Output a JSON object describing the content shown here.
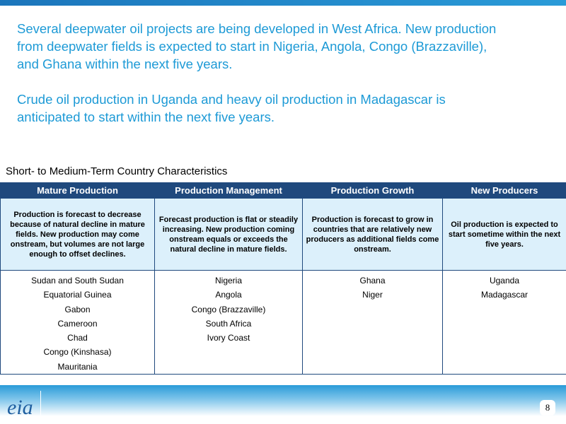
{
  "paragraphs": [
    "Several deepwater oil projects are being developed in West Africa. New production from deepwater fields is expected to start in Nigeria, Angola, Congo (Brazzaville), and Ghana within the next five years.",
    "Crude oil production in Uganda and heavy oil production in Madagascar is anticipated to start within the next five years."
  ],
  "table": {
    "caption": "Short- to Medium-Term Country Characteristics",
    "columns": [
      "Mature Production",
      "Production Management",
      "Production Growth",
      "New Producers"
    ],
    "descriptions": [
      "Production is forecast to decrease because of natural decline in mature fields. New production may come onstream, but volumes are not large enough to offset declines.",
      "Forecast production is flat or steadily increasing. New production coming onstream  equals or exceeds the natural decline in mature fields.",
      "Production is forecast to grow in countries that are relatively new producers as additional fields come onstream.",
      "Oil production is expected to start sometime within the next five years."
    ],
    "countries": [
      [
        "Sudan and South Sudan",
        "Equatorial Guinea",
        "Gabon",
        "Cameroon",
        "Chad",
        "Congo (Kinshasa)",
        "Mauritania"
      ],
      [
        "Nigeria",
        "Angola",
        "Congo (Brazzaville)",
        "South Africa",
        "Ivory Coast"
      ],
      [
        "Ghana",
        "Niger"
      ],
      [
        "Uganda",
        "Madagascar"
      ]
    ]
  },
  "footer": {
    "logo": "eia",
    "page_number": "8"
  }
}
